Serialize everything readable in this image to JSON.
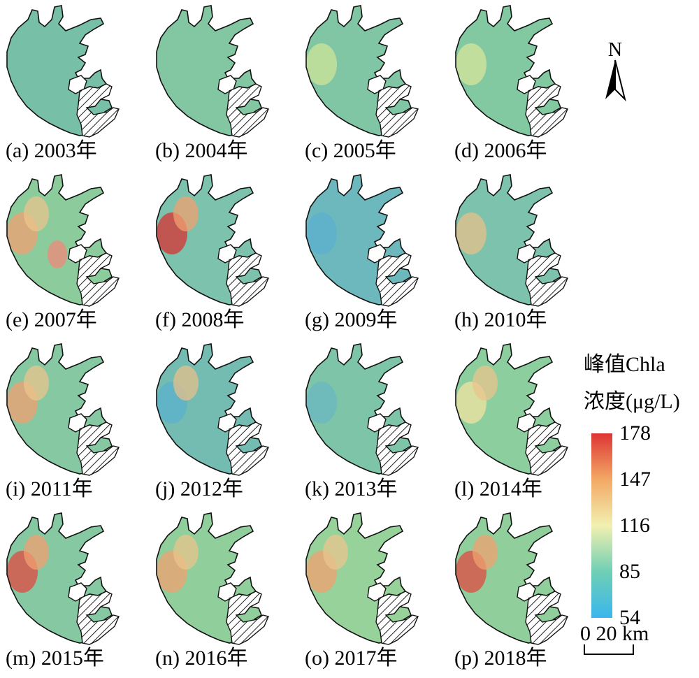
{
  "panels": [
    {
      "caption": "(a) 2003年",
      "base": "#78bfa8",
      "spots": []
    },
    {
      "caption": "(b) 2004年",
      "base": "#82c6a2",
      "spots": []
    },
    {
      "caption": "(c) 2005年",
      "base": "#80c5a4",
      "spots": [
        "#cfe49a"
      ]
    },
    {
      "caption": "(d) 2006年",
      "base": "#82c8a0",
      "spots": [
        "#d6e69c"
      ]
    },
    {
      "caption": "(e) 2007年",
      "base": "#8ccc9c",
      "spots": [
        "#f0a070",
        "#e9c48c",
        "#f08878"
      ]
    },
    {
      "caption": "(f) 2008年",
      "base": "#7cc2ac",
      "spots": [
        "#d83030",
        "#f0a070"
      ]
    },
    {
      "caption": "(g) 2009年",
      "base": "#6cb8bc",
      "spots": [
        "#5cb0d0"
      ]
    },
    {
      "caption": "(h) 2010年",
      "base": "#7cc2ac",
      "spots": [
        "#e6c08a"
      ]
    },
    {
      "caption": "(i) 2011年",
      "base": "#86c8a2",
      "spots": [
        "#f0a070",
        "#e9c48c"
      ]
    },
    {
      "caption": "(j) 2012年",
      "base": "#74bcb2",
      "spots": [
        "#5ab2cc",
        "#e6c08a"
      ]
    },
    {
      "caption": "(k) 2013年",
      "base": "#7ec4a8",
      "spots": [
        "#6bb8c2"
      ]
    },
    {
      "caption": "(l) 2014年",
      "base": "#8cce9e",
      "spots": [
        "#f2e2a0",
        "#e9c48c"
      ]
    },
    {
      "caption": "(m) 2015年",
      "base": "#86c8a2",
      "spots": [
        "#e04a40",
        "#f0a070"
      ]
    },
    {
      "caption": "(n) 2016年",
      "base": "#90ce9c",
      "spots": [
        "#f0a070",
        "#e9c48c"
      ]
    },
    {
      "caption": "(o) 2017年",
      "base": "#96d29a",
      "spots": [
        "#f0a070",
        "#e9c48c"
      ]
    },
    {
      "caption": "(p) 2018年",
      "base": "#90ce9c",
      "spots": [
        "#e04a40",
        "#f0a070"
      ]
    }
  ],
  "north_label": "N",
  "legend": {
    "title_line1": "峰值Chla",
    "title_line2": "浓度(μg/L)",
    "ticks": [
      "178",
      "147",
      "116",
      "85",
      "54"
    ],
    "max": 178,
    "min": 54,
    "colors": [
      "#3ab6ee",
      "#6fcfb4",
      "#f2f0b0",
      "#f3a865",
      "#dd3535"
    ]
  },
  "scale_bar": {
    "label": "0  20 km"
  }
}
